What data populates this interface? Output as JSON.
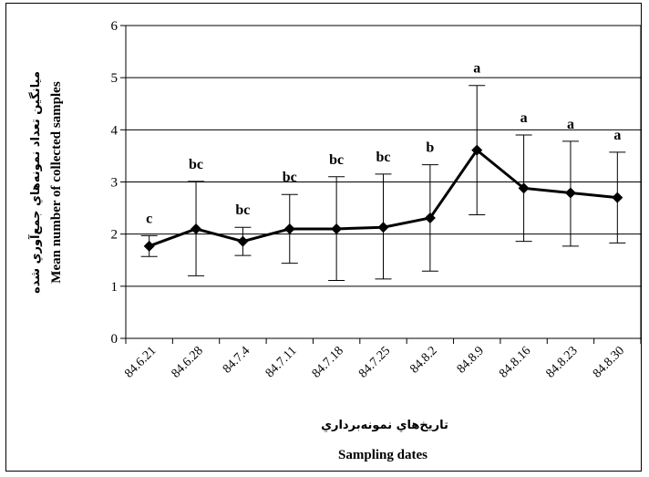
{
  "chart_data": {
    "type": "line",
    "categories": [
      "84.6.21",
      "84.6.28",
      "84.7.4",
      "84.7.11",
      "84.7.18",
      "84.7.25",
      "84.8.2",
      "84.8.9",
      "84.8.16",
      "84.8.23",
      "84.8.30"
    ],
    "values": [
      1.77,
      2.1,
      1.86,
      2.1,
      2.1,
      2.13,
      2.31,
      3.61,
      2.88,
      2.79,
      2.7
    ],
    "err_upper": [
      1.97,
      3.01,
      2.13,
      2.76,
      3.1,
      3.15,
      3.33,
      4.85,
      3.9,
      3.78,
      3.57
    ],
    "err_lower": [
      1.57,
      1.2,
      1.59,
      1.44,
      1.11,
      1.14,
      1.29,
      2.37,
      1.86,
      1.77,
      1.83
    ],
    "significance": [
      "c",
      "bc",
      "bc",
      "bc",
      "bc",
      "bc",
      "b",
      "a",
      "a",
      "a",
      "a"
    ],
    "ylabel_fa": "ميانگين تعداد نمونه‌هاي جمع‌آوري شده",
    "ylabel": "Mean number of collected samples",
    "xlabel_fa": "تاريخ‌هاي نمونه‌برداري",
    "xlabel": "Sampling dates",
    "ylim": [
      0,
      6
    ],
    "yticks": [
      "0",
      "1",
      "2",
      "3",
      "4",
      "5",
      "6"
    ],
    "grid": true,
    "legend": "none",
    "line_color": "#000000",
    "marker": "diamond"
  }
}
